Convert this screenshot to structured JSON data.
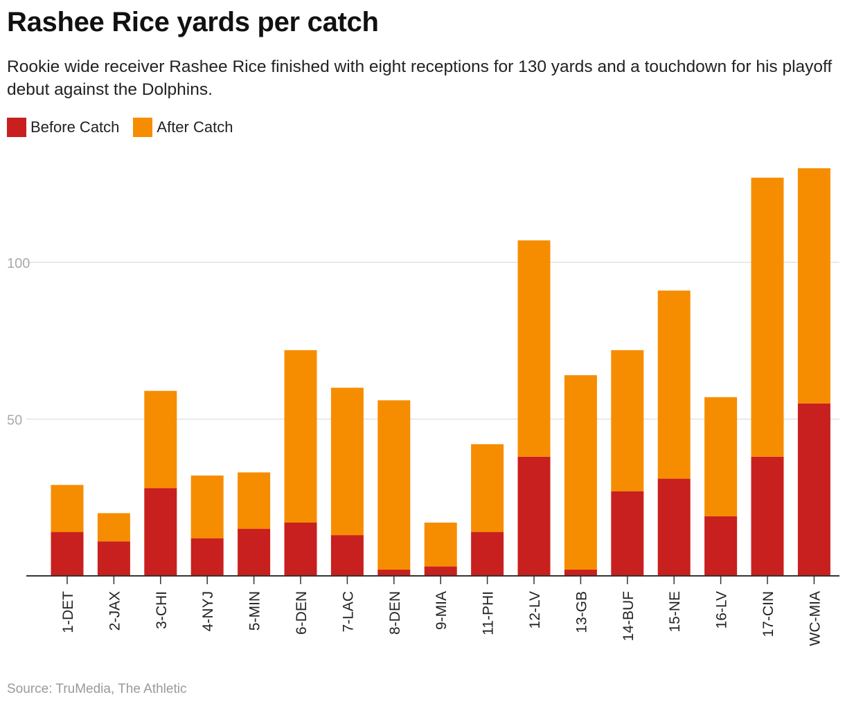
{
  "header": {
    "title": "Rashee Rice yards per catch",
    "subtitle": "Rookie wide receiver Rashee Rice finished with eight receptions for 130 yards and a touchdown for his playoff debut against the Dolphins."
  },
  "legend": [
    {
      "label": "Before Catch",
      "color": "#c8201e"
    },
    {
      "label": "After Catch",
      "color": "#f68d00"
    }
  ],
  "footer": {
    "source": "Source: TruMedia, The Athletic"
  },
  "chart_data": {
    "type": "bar",
    "stacked": true,
    "title": "Rashee Rice yards per catch",
    "xlabel": "",
    "ylabel": "",
    "ylim": [
      0,
      130
    ],
    "yticks": [
      50,
      100
    ],
    "grid": true,
    "legend_position": "top-left",
    "categories": [
      "1-DET",
      "2-JAX",
      "3-CHI",
      "4-NYJ",
      "5-MIN",
      "6-DEN",
      "7-LAC",
      "8-DEN",
      "9-MIA",
      "11-PHI",
      "12-LV",
      "13-GB",
      "14-BUF",
      "15-NE",
      "16-LV",
      "17-CIN",
      "WC-MIA"
    ],
    "series": [
      {
        "name": "Before Catch",
        "color": "#c8201e",
        "values": [
          14,
          11,
          28,
          12,
          15,
          17,
          13,
          2,
          3,
          14,
          38,
          2,
          27,
          31,
          19,
          38,
          55
        ]
      },
      {
        "name": "After Catch",
        "color": "#f68d00",
        "values": [
          15,
          9,
          31,
          20,
          18,
          55,
          47,
          54,
          14,
          28,
          69,
          62,
          45,
          60,
          38,
          89,
          75
        ]
      }
    ]
  }
}
